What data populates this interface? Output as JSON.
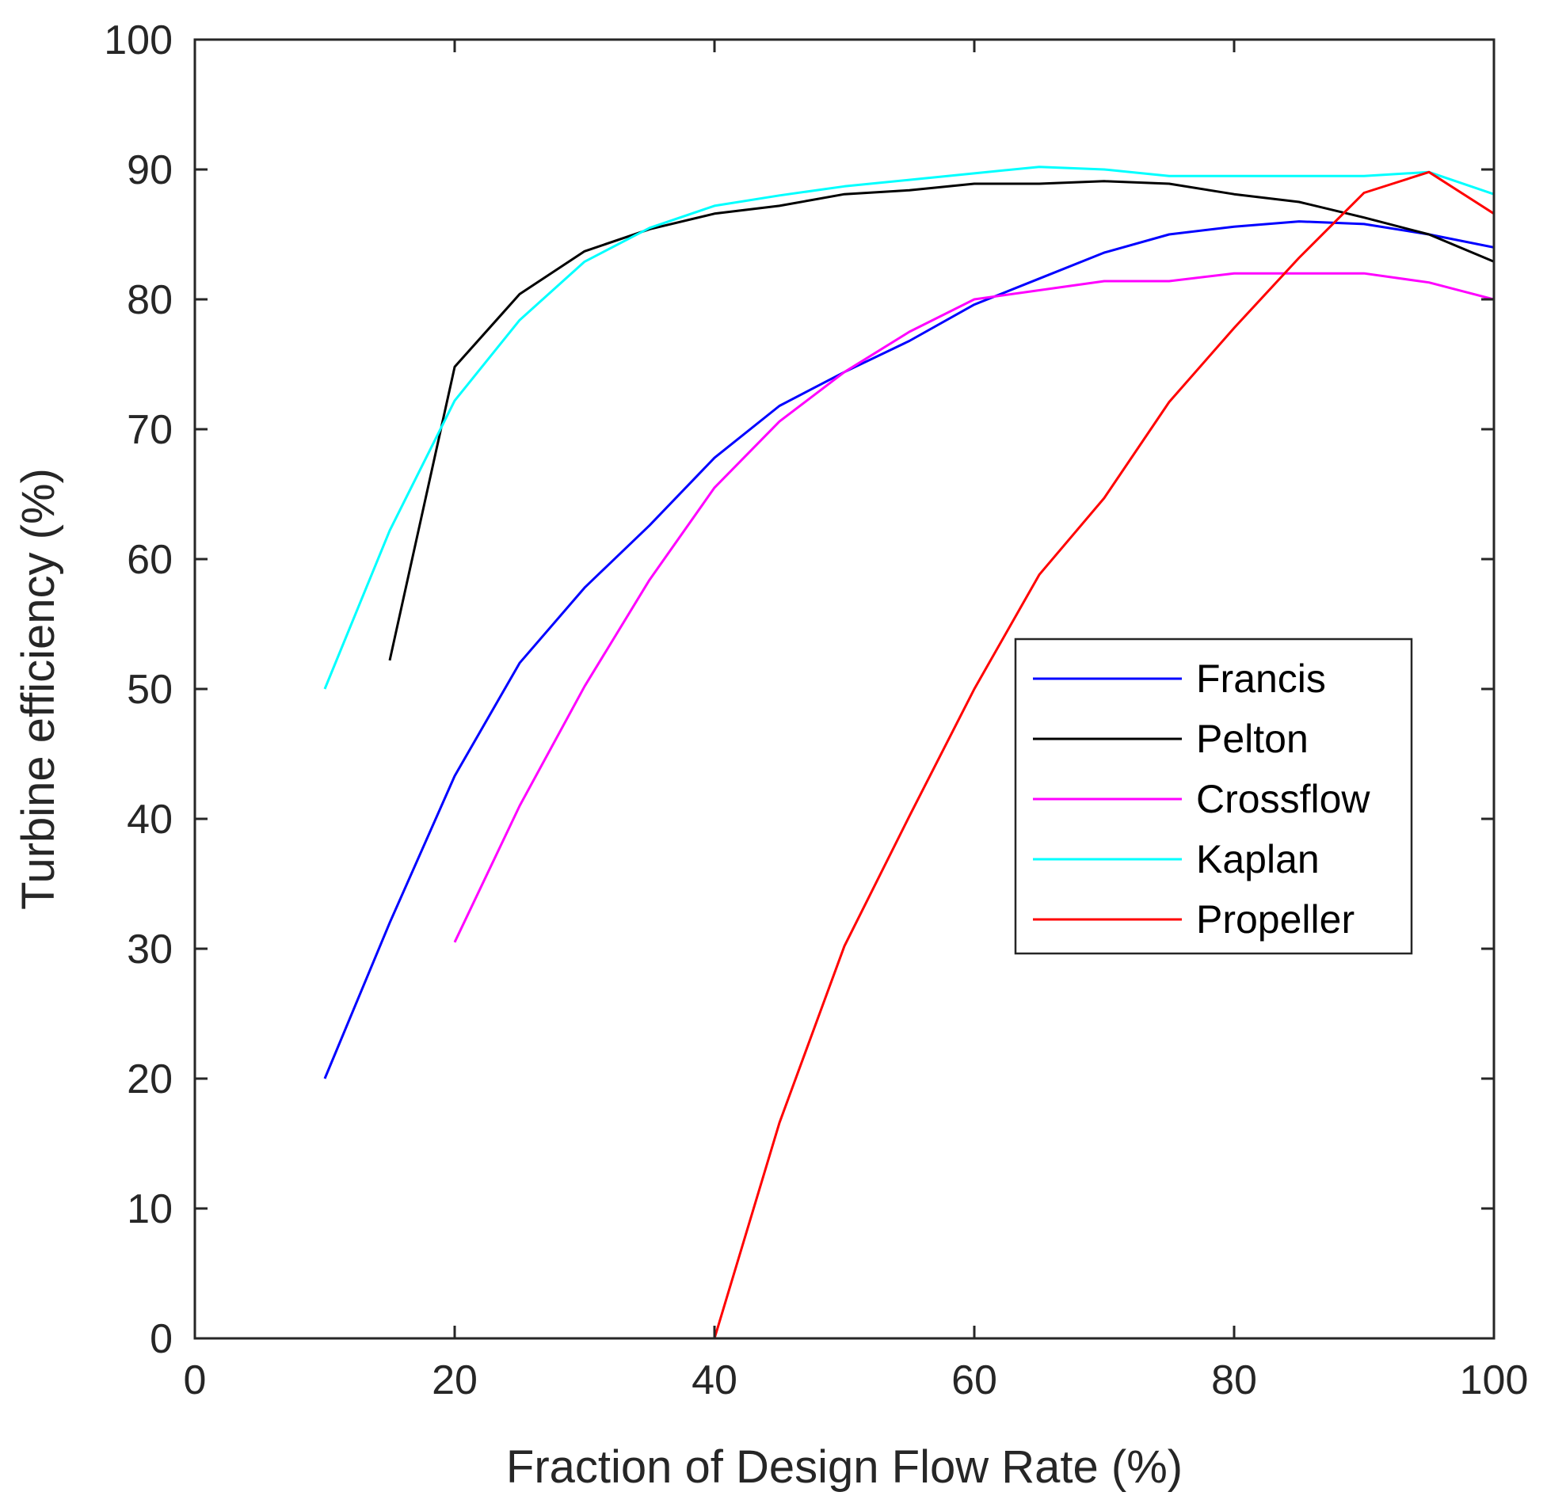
{
  "chart_data": {
    "type": "line",
    "title": "",
    "xlabel": "Fraction of Design Flow Rate (%)",
    "ylabel": "Turbine efficiency (%)",
    "xlim": [
      0,
      100
    ],
    "ylim": [
      0,
      100
    ],
    "xticks": [
      0,
      20,
      40,
      60,
      80,
      100
    ],
    "yticks": [
      0,
      10,
      20,
      30,
      40,
      50,
      60,
      70,
      80,
      90,
      100
    ],
    "grid": false,
    "legend_position": "center-right",
    "series": [
      {
        "name": "Francis",
        "color": "#0000ff",
        "x": [
          10,
          15,
          20,
          25,
          30,
          35,
          40,
          45,
          50,
          55,
          60,
          65,
          70,
          75,
          80,
          85,
          90,
          95,
          100
        ],
        "y": [
          20,
          32,
          43.3,
          52,
          57.8,
          62.6,
          67.8,
          71.8,
          74.4,
          76.8,
          79.6,
          81.6,
          83.6,
          85,
          85.6,
          86,
          85.8,
          85,
          84
        ]
      },
      {
        "name": "Pelton",
        "color": "#000000",
        "x": [
          15,
          20,
          25,
          30,
          35,
          40,
          45,
          50,
          55,
          60,
          65,
          70,
          75,
          80,
          85,
          90,
          95,
          100
        ],
        "y": [
          52.2,
          74.8,
          80.4,
          83.7,
          85.4,
          86.6,
          87.2,
          88.1,
          88.4,
          88.9,
          88.9,
          89.1,
          88.9,
          88.1,
          87.5,
          86.3,
          85,
          82.9
        ]
      },
      {
        "name": "Crossflow",
        "color": "#ff00ff",
        "x": [
          20,
          25,
          30,
          35,
          40,
          45,
          50,
          55,
          60,
          65,
          70,
          75,
          80,
          85,
          90,
          95,
          100
        ],
        "y": [
          30.5,
          41,
          50.2,
          58.4,
          65.5,
          70.6,
          74.4,
          77.5,
          80,
          80.7,
          81.4,
          81.4,
          82,
          82,
          82,
          81.3,
          80
        ]
      },
      {
        "name": "Kaplan",
        "color": "#00ffff",
        "x": [
          10,
          15,
          20,
          25,
          30,
          35,
          40,
          45,
          50,
          55,
          60,
          65,
          70,
          75,
          80,
          85,
          90,
          95,
          100
        ],
        "y": [
          50,
          62.2,
          72.2,
          78.4,
          82.9,
          85.5,
          87.2,
          88,
          88.7,
          89.2,
          89.7,
          90.2,
          90,
          89.5,
          89.5,
          89.5,
          89.5,
          89.8,
          88.1
        ]
      },
      {
        "name": "Propeller",
        "color": "#ff0000",
        "x": [
          40,
          45,
          50,
          55,
          60,
          65,
          70,
          75,
          80,
          85,
          90,
          95,
          100
        ],
        "y": [
          0,
          16.6,
          30.2,
          40.2,
          50,
          58.8,
          64.7,
          72.1,
          77.8,
          83.2,
          88.2,
          89.8,
          86.6
        ]
      }
    ]
  }
}
